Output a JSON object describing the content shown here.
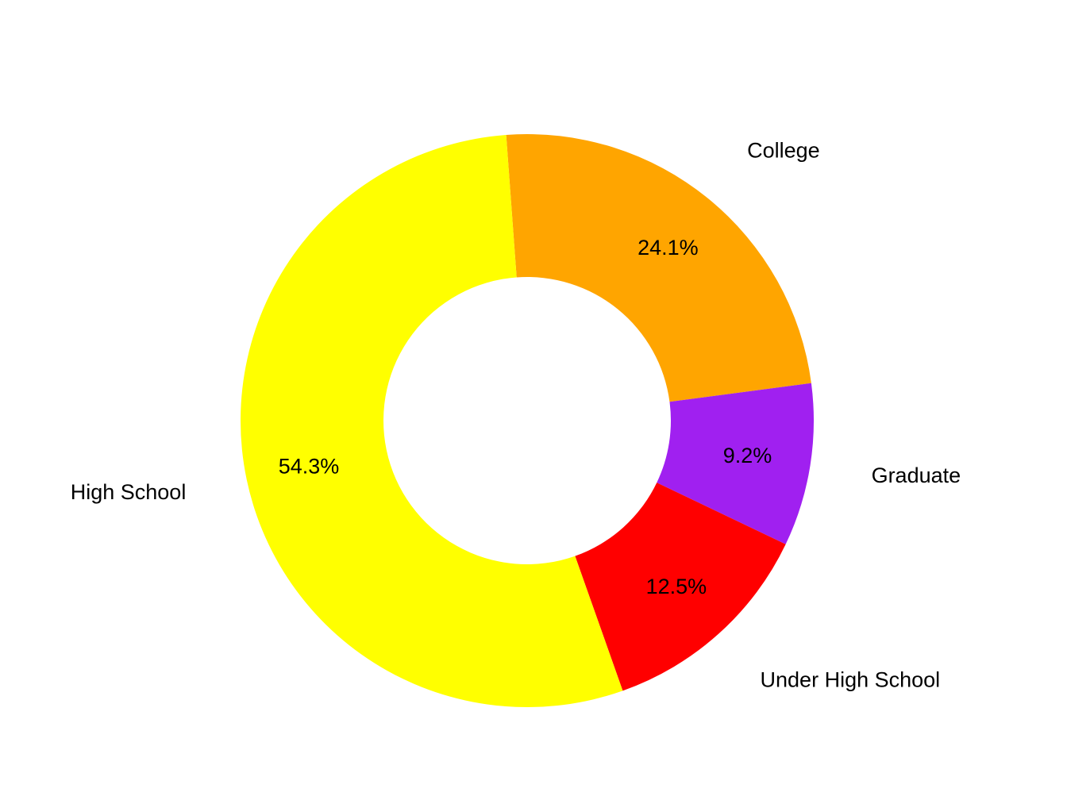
{
  "chart_data": {
    "type": "pie",
    "style": "donut",
    "direction": "clockwise",
    "slices": [
      {
        "category": "College",
        "value": 24.1,
        "label": "24.1%",
        "color": "#FFA500"
      },
      {
        "category": "Graduate",
        "value": 9.2,
        "label": "9.2%",
        "color": "#A020F0"
      },
      {
        "category": "Under High School",
        "value": 12.5,
        "label": "12.5%",
        "color": "#FF0000"
      },
      {
        "category": "High School",
        "value": 54.3,
        "label": "54.3%",
        "color": "#FFFF00"
      }
    ]
  }
}
